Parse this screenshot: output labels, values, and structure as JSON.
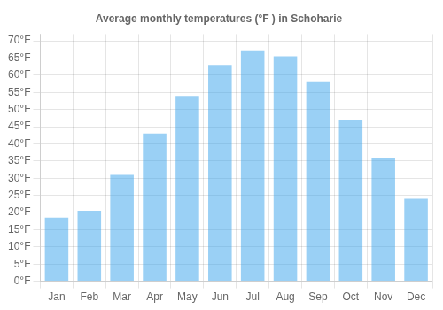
{
  "chart_data": {
    "type": "bar",
    "title": "Average monthly temperatures (°F ) in Schoharie",
    "categories": [
      "Jan",
      "Feb",
      "Mar",
      "Apr",
      "May",
      "Jun",
      "Jul",
      "Aug",
      "Sep",
      "Oct",
      "Nov",
      "Dec"
    ],
    "values": [
      18.5,
      20.5,
      31.0,
      43.0,
      54.0,
      63.0,
      67.0,
      65.5,
      58.0,
      47.0,
      36.0,
      24.0
    ],
    "ylim": [
      0,
      72
    ],
    "yticks": [
      {
        "value": 0,
        "label": "0°F"
      },
      {
        "value": 5,
        "label": "5°F"
      },
      {
        "value": 10,
        "label": "10°F"
      },
      {
        "value": 15,
        "label": "15°F"
      },
      {
        "value": 20,
        "label": "20°F"
      },
      {
        "value": 25,
        "label": "25°F"
      },
      {
        "value": 30,
        "label": "30°F"
      },
      {
        "value": 35,
        "label": "35°F"
      },
      {
        "value": 40,
        "label": "40°F"
      },
      {
        "value": 45,
        "label": "45°F"
      },
      {
        "value": 50,
        "label": "50°F"
      },
      {
        "value": 55,
        "label": "55°F"
      },
      {
        "value": 60,
        "label": "60°F"
      },
      {
        "value": 65,
        "label": "65°F"
      },
      {
        "value": 70,
        "label": "70°F"
      }
    ],
    "grid": true
  }
}
